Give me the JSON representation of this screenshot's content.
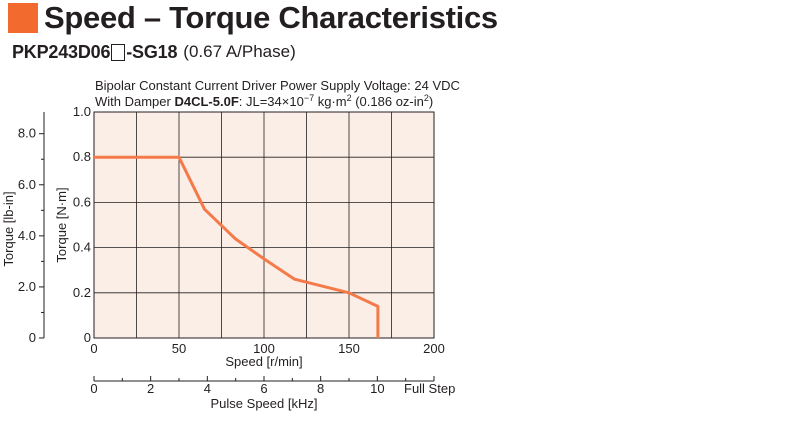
{
  "header": {
    "title": "Speed – Torque Characteristics",
    "model_prefix": "PKP243D06",
    "model_suffix": "-SG18",
    "current": "(0.67 A/Phase)"
  },
  "conditions": {
    "line1": "Bipolar Constant Current Driver  Power Supply Voltage: 24 VDC",
    "line2_prefix": "With Damper ",
    "line2_damper": "D4CL-5.0F",
    "line2_inertia": ": JL=34×10",
    "line2_exp": "−7",
    "line2_unit": " kg·m",
    "line2_unit_exp": "2",
    "line2_oz": " (0.186 oz-in",
    "line2_oz_exp": "2",
    "line2_close": ")"
  },
  "colors": {
    "accent": "#f26a2e",
    "plot_bg": "#fbeee6",
    "curve": "#f47a4a",
    "grid": "#231f20"
  },
  "chart_data": {
    "type": "line",
    "x": [
      0,
      50,
      65,
      83,
      100,
      118,
      150,
      167,
      167
    ],
    "series": [
      {
        "values": [
          0.8,
          0.8,
          0.57,
          0.44,
          0.35,
          0.26,
          0.2,
          0.14,
          0.0
        ]
      }
    ],
    "xlabel": "Speed [r/min]",
    "xlim": [
      0,
      200
    ],
    "x_ticks": [
      "0",
      "50",
      "100",
      "150",
      "200"
    ],
    "ylabel": "Torque [N·m]",
    "ylim": [
      0,
      1.0
    ],
    "y_ticks": [
      "0",
      "0.2",
      "0.4",
      "0.6",
      "0.8",
      "1.0"
    ],
    "y2label": "Torque [lb-in]",
    "y2lim": [
      0,
      8.85
    ],
    "y2_ticks": [
      {
        "label": "0",
        "value": 0
      },
      {
        "label": "2.0",
        "value": 2.0
      },
      {
        "label": "4.0",
        "value": 4.0
      },
      {
        "label": "6.0",
        "value": 6.0
      },
      {
        "label": "8.0",
        "value": 8.0
      }
    ],
    "x2label": "Pulse Speed [kHz]",
    "x2lim": [
      0,
      12
    ],
    "x2_ticks": [
      {
        "label": "0",
        "value": 0
      },
      {
        "label": "2",
        "value": 2
      },
      {
        "label": "4",
        "value": 4
      },
      {
        "label": "6",
        "value": 6
      },
      {
        "label": "8",
        "value": 8
      },
      {
        "label": "10",
        "value": 10
      }
    ],
    "x2_note": "Full Step",
    "grid": true
  }
}
